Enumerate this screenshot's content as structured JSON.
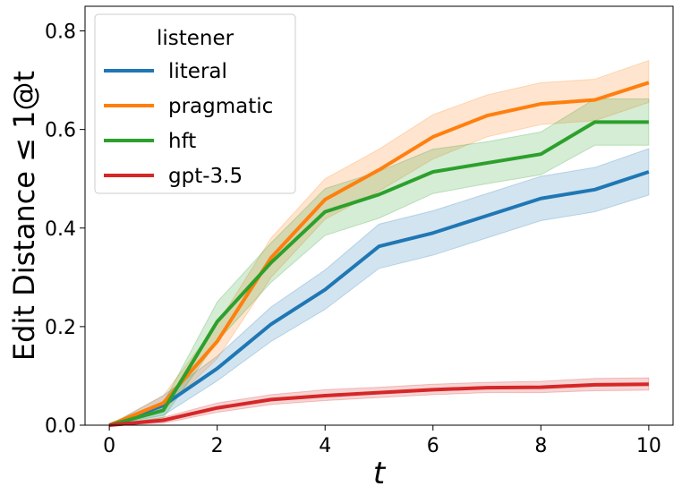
{
  "chart_data": {
    "type": "line",
    "xlabel": "t",
    "ylabel": "Edit Distance ≤ 1@t",
    "xlim": [
      -0.45,
      10.45
    ],
    "ylim": [
      0.0,
      0.85
    ],
    "xticks": [
      0,
      2,
      4,
      6,
      8,
      10
    ],
    "yticks": [
      0.0,
      0.2,
      0.4,
      0.6,
      0.8
    ],
    "xtick_labels": [
      "0",
      "2",
      "4",
      "6",
      "8",
      "10"
    ],
    "ytick_labels": [
      "0.0",
      "0.2",
      "0.4",
      "0.6",
      "0.8"
    ],
    "grid": false,
    "legend": {
      "title": "listener",
      "position": "top-left"
    },
    "x": [
      0,
      1,
      2,
      3,
      4,
      5,
      6,
      7,
      8,
      9,
      10
    ],
    "series": [
      {
        "name": "literal",
        "color": "#1f77b4",
        "values": [
          0.0,
          0.04,
          0.115,
          0.205,
          0.275,
          0.363,
          0.39,
          0.425,
          0.46,
          0.478,
          0.514
        ],
        "lower": [
          0.0,
          0.02,
          0.09,
          0.17,
          0.235,
          0.318,
          0.345,
          0.38,
          0.415,
          0.433,
          0.467
        ],
        "upper": [
          0.0,
          0.06,
          0.14,
          0.24,
          0.315,
          0.408,
          0.435,
          0.47,
          0.505,
          0.523,
          0.561
        ]
      },
      {
        "name": "pragmatic",
        "color": "#ff7f0e",
        "values": [
          0.0,
          0.045,
          0.17,
          0.34,
          0.458,
          0.518,
          0.585,
          0.628,
          0.652,
          0.66,
          0.695
        ],
        "lower": [
          0.0,
          0.03,
          0.135,
          0.3,
          0.418,
          0.475,
          0.54,
          0.585,
          0.61,
          0.618,
          0.655
        ],
        "upper": [
          0.0,
          0.06,
          0.205,
          0.38,
          0.5,
          0.56,
          0.63,
          0.67,
          0.695,
          0.702,
          0.74
        ]
      },
      {
        "name": "hft",
        "color": "#2ca02c",
        "values": [
          0.0,
          0.03,
          0.21,
          0.33,
          0.433,
          0.468,
          0.514,
          0.532,
          0.55,
          0.615,
          0.615
        ],
        "lower": [
          0.0,
          0.015,
          0.17,
          0.29,
          0.385,
          0.42,
          0.47,
          0.49,
          0.508,
          0.568,
          0.568
        ],
        "upper": [
          0.0,
          0.045,
          0.25,
          0.37,
          0.48,
          0.515,
          0.56,
          0.575,
          0.595,
          0.662,
          0.662
        ]
      },
      {
        "name": "gpt-3.5",
        "color": "#d62728",
        "values": [
          0.0,
          0.01,
          0.035,
          0.052,
          0.06,
          0.066,
          0.072,
          0.076,
          0.077,
          0.082,
          0.083
        ],
        "lower": [
          0.0,
          0.004,
          0.026,
          0.042,
          0.05,
          0.056,
          0.062,
          0.066,
          0.066,
          0.07,
          0.071
        ],
        "upper": [
          0.0,
          0.016,
          0.045,
          0.062,
          0.072,
          0.077,
          0.083,
          0.087,
          0.089,
          0.095,
          0.096
        ]
      }
    ]
  }
}
